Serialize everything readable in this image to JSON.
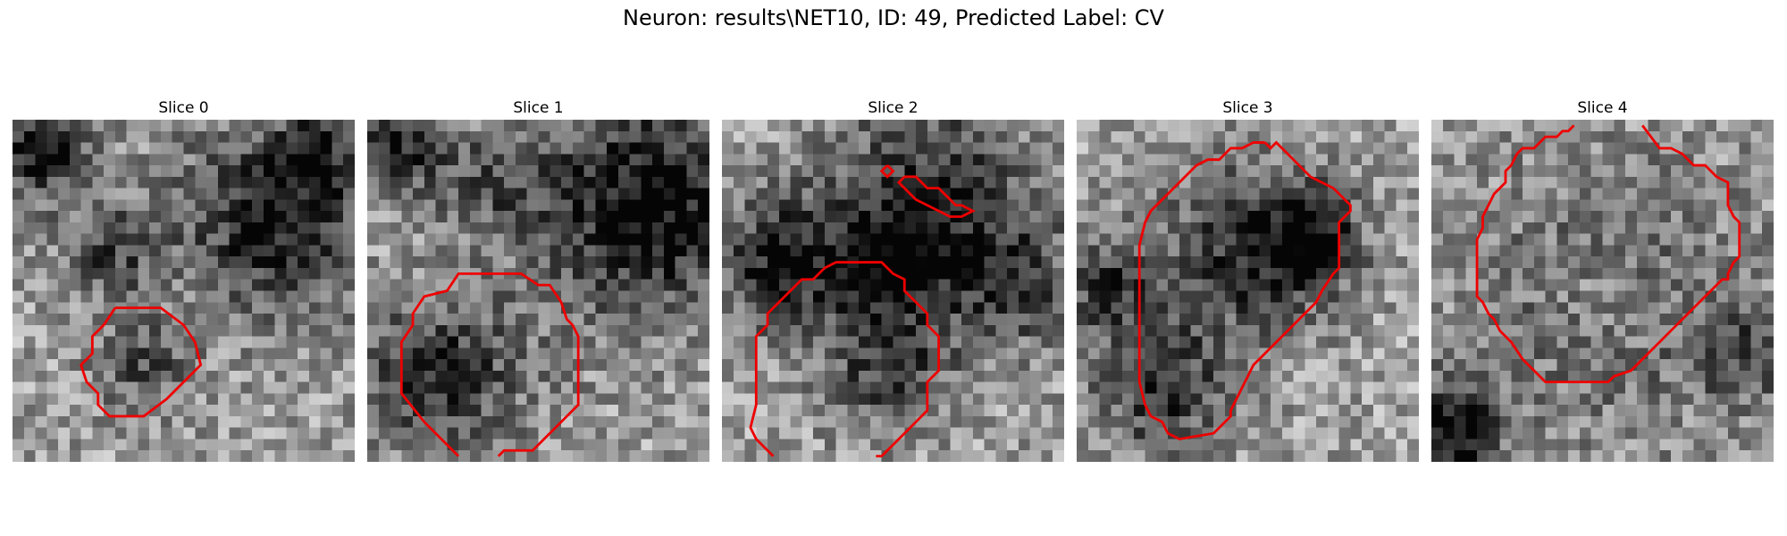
{
  "figure": {
    "title": "Neuron: results\\NET10, ID: 49, Predicted Label: CV"
  },
  "panels": [
    {
      "title": "Slice 0"
    },
    {
      "title": "Slice 1"
    },
    {
      "title": "Slice 2"
    },
    {
      "title": "Slice 3"
    },
    {
      "title": "Slice 4"
    }
  ],
  "colors": {
    "contour": "#ff0000",
    "background": "#ffffff"
  }
}
